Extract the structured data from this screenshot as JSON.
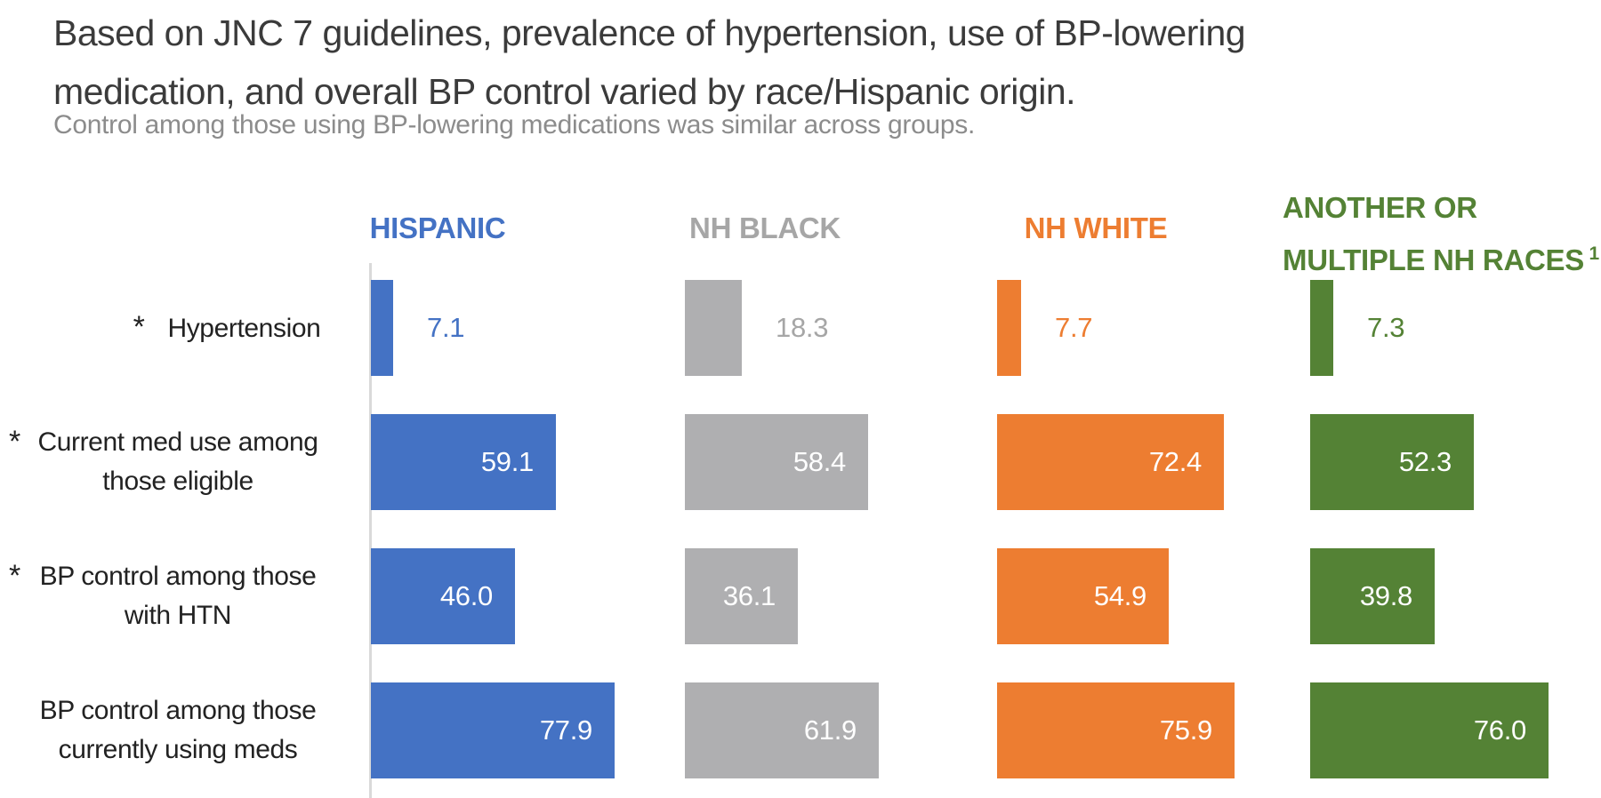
{
  "title": {
    "line1": "Based on JNC 7 guidelines, prevalence of hypertension, use of BP-lowering",
    "line2": "medication, and overall BP control varied by race/Hispanic origin."
  },
  "subtitle": "Control among those using BP-lowering medications was similar across groups.",
  "asterisk_char": "*",
  "colors": {
    "hispanic": "#4472C4",
    "nh_black_bar": "#AFAFB1",
    "nh_black_header": "#A6A6A6",
    "nh_white": "#ED7D31",
    "another_multiple": "#548235",
    "title_text": "#3B3B3B",
    "subtitle_text": "#8C8C8C",
    "row_label_text": "#222222",
    "value_inside_text": "#FFFFFF",
    "axis": "#D9D9D9"
  },
  "chart_data": {
    "type": "bar",
    "orientation": "horizontal",
    "xlim": [
      0,
      100
    ],
    "grid": false,
    "legend_position": "column headers above each bar group",
    "value_labels": "one decimal; outside bar for first row (series color), inside right-aligned white for other rows",
    "groups": [
      {
        "label": "HISPANIC",
        "lines": [
          "HISPANIC"
        ],
        "superscript": "",
        "bar_color": "#4472C4",
        "header_color": "#4472C4"
      },
      {
        "label": "NH BLACK",
        "lines": [
          "NH BLACK"
        ],
        "superscript": "",
        "bar_color": "#AFAFB1",
        "header_color": "#A6A6A6"
      },
      {
        "label": "NH WHITE",
        "lines": [
          "NH WHITE"
        ],
        "superscript": "",
        "bar_color": "#ED7D31",
        "header_color": "#ED7D31"
      },
      {
        "label": "ANOTHER OR MULTIPLE NH RACES",
        "lines": [
          "ANOTHER OR",
          "MULTIPLE NH RACES"
        ],
        "superscript": "1",
        "bar_color": "#548235",
        "header_color": "#548235"
      }
    ],
    "categories": [
      {
        "label": "Hypertension",
        "lines": [
          "Hypertension"
        ],
        "asterisk": true
      },
      {
        "label": "Current med use among those eligible",
        "lines": [
          "Current med use among",
          "those eligible"
        ],
        "asterisk": true
      },
      {
        "label": "BP control among those with HTN",
        "lines": [
          "BP control among those",
          "with HTN"
        ],
        "asterisk": true
      },
      {
        "label": "BP control among those currently using meds",
        "lines": [
          "BP control among those",
          "currently using meds"
        ],
        "asterisk": false
      }
    ],
    "series": [
      {
        "name": "HISPANIC",
        "values": [
          7.1,
          59.1,
          46.0,
          77.9
        ]
      },
      {
        "name": "NH BLACK",
        "values": [
          18.3,
          58.4,
          36.1,
          61.9
        ]
      },
      {
        "name": "NH WHITE",
        "values": [
          7.7,
          72.4,
          54.9,
          75.9
        ]
      },
      {
        "name": "ANOTHER OR MULTIPLE NH RACES",
        "values": [
          7.3,
          52.3,
          39.8,
          76.0
        ]
      }
    ]
  }
}
